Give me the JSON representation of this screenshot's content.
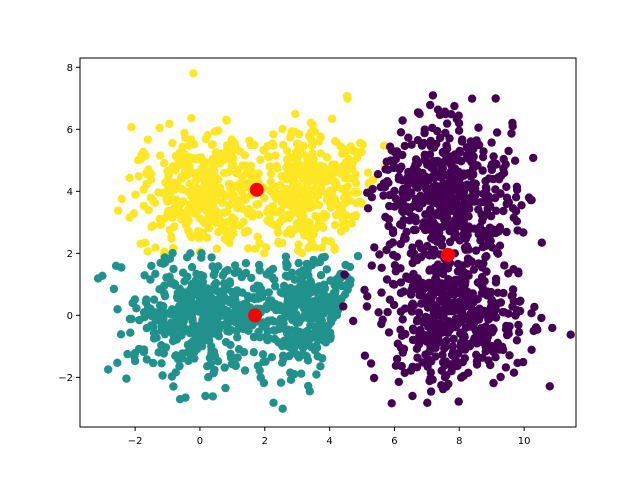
{
  "chart_data": {
    "type": "scatter",
    "title": "",
    "xlabel": "",
    "ylabel": "",
    "xlim": [
      -3.7,
      11.6
    ],
    "ylim": [
      -3.6,
      8.3
    ],
    "xticks": [
      -2,
      0,
      2,
      4,
      6,
      8,
      10
    ],
    "yticks": [
      -2,
      0,
      2,
      4,
      6,
      8
    ],
    "grid": false,
    "legend": "none",
    "clusters": [
      {
        "color": "#fde725",
        "count": 750,
        "generators": [
          {
            "center": [
              0.0,
              4.0
            ],
            "spread": [
              1.0,
              1.0
            ],
            "weight": 0.5
          },
          {
            "center": [
              3.5,
              4.0
            ],
            "spread": [
              0.9,
              1.0
            ],
            "weight": 0.5
          }
        ],
        "region": {
          "x_max_boundary": "x < 4.2 + 0.5*(y-2)",
          "y_min": 1.95
        }
      },
      {
        "color": "#21918c",
        "count": 750,
        "generators": [
          {
            "center": [
              0.0,
              0.0
            ],
            "spread": [
              1.0,
              1.0
            ],
            "weight": 0.5
          },
          {
            "center": [
              3.5,
              0.0
            ],
            "spread": [
              0.9,
              1.0
            ],
            "weight": 0.5
          }
        ],
        "region": {
          "x_max_boundary": "x < 4.6 + 0.35*(y-2)",
          "y_max": 2.05
        }
      },
      {
        "color": "#440154",
        "count": 1000,
        "generators": [
          {
            "center": [
              7.5,
              4.0
            ],
            "spread": [
              1.1,
              1.1
            ],
            "weight": 0.5
          },
          {
            "center": [
              7.8,
              0.0
            ],
            "spread": [
              1.1,
              1.1
            ],
            "weight": 0.5
          }
        ]
      }
    ],
    "centroids": {
      "color": "#ff0000",
      "points": [
        {
          "x": 1.75,
          "y": 4.05
        },
        {
          "x": 1.7,
          "y": 0.0
        },
        {
          "x": 7.65,
          "y": 1.95
        }
      ]
    }
  }
}
